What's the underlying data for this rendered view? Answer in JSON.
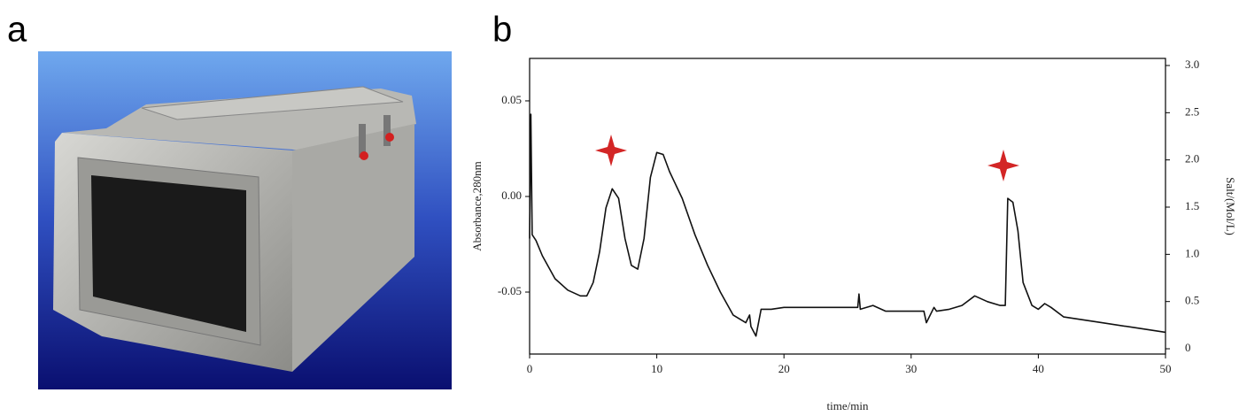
{
  "panel_labels": [
    "a",
    "b"
  ],
  "chart_data": {
    "type": "line",
    "x_label": "time/min",
    "y_label": "Absorbance,280nm",
    "y2_label": "Salt/(Mol/L)",
    "xlim": [
      0,
      50
    ],
    "xticks": [
      0,
      10,
      20,
      30,
      40,
      50
    ],
    "ylim": [
      -0.0824,
      0.0722
    ],
    "yticks": [
      -0.05,
      {
        "value": 0,
        "label": "0.00"
      },
      0.05
    ],
    "y2lim": [
      -0.056,
      3.075
    ],
    "y2ticks": [
      0,
      0.5,
      {
        "value": 1,
        "label": "1.0"
      },
      1.5,
      {
        "value": 2,
        "label": "2.0"
      },
      2.5,
      {
        "value": 3,
        "label": "3.0"
      }
    ],
    "series": [
      {
        "color": "#111111",
        "x": [
          0,
          0.1,
          0.2,
          0.5,
          1,
          2,
          3,
          4,
          4.5,
          5,
          5.5,
          6,
          6.5,
          7,
          7.5,
          8,
          8.5,
          9,
          9.5,
          10,
          10.5,
          11,
          12,
          13,
          14,
          15,
          16,
          17,
          17.3,
          17.4,
          17.8,
          18.2,
          19,
          20,
          25.8,
          25.9,
          26,
          27,
          28,
          30,
          31,
          31.2,
          31.8,
          32,
          33,
          34,
          35,
          36,
          37,
          37.4,
          37.6,
          38,
          38.4,
          38.8,
          39.5,
          40,
          40.5,
          41,
          42,
          45,
          48,
          50
        ],
        "values": [
          -0.022,
          0.043,
          -0.02,
          -0.023,
          -0.031,
          -0.043,
          -0.049,
          -0.052,
          -0.052,
          -0.045,
          -0.029,
          -0.006,
          0.004,
          -0.001,
          -0.022,
          -0.036,
          -0.038,
          -0.022,
          0.01,
          0.023,
          0.022,
          0.013,
          -0.001,
          -0.02,
          -0.036,
          -0.05,
          -0.062,
          -0.066,
          -0.062,
          -0.068,
          -0.073,
          -0.059,
          -0.059,
          -0.058,
          -0.058,
          -0.051,
          -0.059,
          -0.057,
          -0.06,
          -0.06,
          -0.06,
          -0.066,
          -0.058,
          -0.06,
          -0.059,
          -0.057,
          -0.052,
          -0.055,
          -0.057,
          -0.057,
          -0.001,
          -0.003,
          -0.018,
          -0.045,
          -0.057,
          -0.059,
          -0.056,
          -0.058,
          -0.063,
          -0.066,
          -0.069,
          -0.071
        ]
      }
    ]
  }
}
